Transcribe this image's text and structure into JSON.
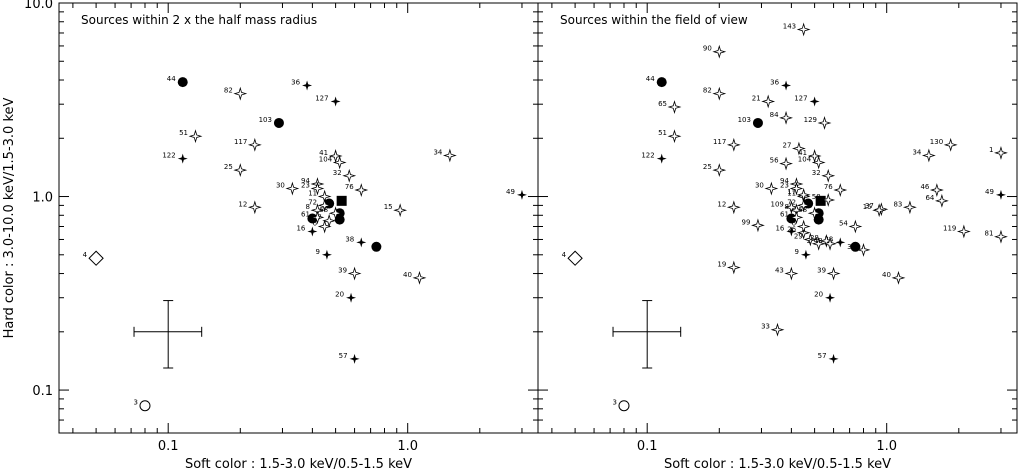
{
  "chart_data": [
    {
      "type": "scatter",
      "title": "Sources within 2 x the half mass radius",
      "xlabel": "Soft color : 1.5-3.0 keV/0.5-1.5 keV",
      "ylabel": "Hard color : 3.0-10.0 keV/1.5-3.0 keV",
      "xscale": "log",
      "yscale": "log",
      "xlim": [
        0.035,
        3.5
      ],
      "ylim": [
        0.06,
        10.0
      ],
      "xticks": [
        "0.1",
        "1.0"
      ],
      "yticks": [
        "0.1",
        "1.0",
        "10.0"
      ],
      "error_bar": {
        "x": 0.1,
        "y": 0.2,
        "x_low": 0.072,
        "x_high": 0.138,
        "y_low": 0.13,
        "y_high": 0.29
      },
      "series": [
        {
          "marker": "filled-circle",
          "points": [
            {
              "id": "44",
              "x": 0.115,
              "y": 3.9
            },
            {
              "id": "103",
              "x": 0.29,
              "y": 2.4
            },
            {
              "id": "",
              "x": 0.4,
              "y": 0.77
            },
            {
              "id": "",
              "x": 0.52,
              "y": 0.76
            },
            {
              "id": "",
              "x": 0.52,
              "y": 0.82
            },
            {
              "id": "",
              "x": 0.47,
              "y": 0.92
            },
            {
              "id": "",
              "x": 0.74,
              "y": 0.55
            }
          ]
        },
        {
          "marker": "filled-square",
          "points": [
            {
              "id": "",
              "x": 0.53,
              "y": 0.95
            }
          ]
        },
        {
          "marker": "filled-star",
          "points": [
            {
              "id": "36",
              "x": 0.38,
              "y": 3.75
            },
            {
              "id": "127",
              "x": 0.5,
              "y": 3.1
            },
            {
              "id": "122",
              "x": 0.115,
              "y": 1.57
            },
            {
              "id": "49",
              "x": 3.0,
              "y": 1.02
            },
            {
              "id": "16",
              "x": 0.4,
              "y": 0.66
            },
            {
              "id": "38",
              "x": 0.64,
              "y": 0.58
            },
            {
              "id": "9",
              "x": 0.46,
              "y": 0.5
            },
            {
              "id": "20",
              "x": 0.58,
              "y": 0.3
            },
            {
              "id": "57",
              "x": 0.6,
              "y": 0.145
            }
          ]
        },
        {
          "marker": "open-star",
          "points": [
            {
              "id": "82",
              "x": 0.2,
              "y": 3.4
            },
            {
              "id": "51",
              "x": 0.13,
              "y": 2.05
            },
            {
              "id": "117",
              "x": 0.23,
              "y": 1.85
            },
            {
              "id": "41",
              "x": 0.5,
              "y": 1.62
            },
            {
              "id": "104",
              "x": 0.52,
              "y": 1.5
            },
            {
              "id": "34",
              "x": 1.5,
              "y": 1.63
            },
            {
              "id": "25",
              "x": 0.2,
              "y": 1.37
            },
            {
              "id": "32",
              "x": 0.57,
              "y": 1.28
            },
            {
              "id": "30",
              "x": 0.33,
              "y": 1.1
            },
            {
              "id": "94",
              "x": 0.42,
              "y": 1.16
            },
            {
              "id": "23",
              "x": 0.42,
              "y": 1.1
            },
            {
              "id": "76",
              "x": 0.64,
              "y": 1.08
            },
            {
              "id": "11",
              "x": 0.45,
              "y": 1.0
            },
            {
              "id": "12",
              "x": 0.23,
              "y": 0.88
            },
            {
              "id": "72",
              "x": 0.45,
              "y": 0.9
            },
            {
              "id": "15",
              "x": 0.93,
              "y": 0.85
            },
            {
              "id": "8",
              "x": 0.42,
              "y": 0.85
            },
            {
              "id": "68",
              "x": 0.5,
              "y": 0.82
            },
            {
              "id": "61",
              "x": 0.42,
              "y": 0.78
            },
            {
              "id": "27",
              "x": 0.47,
              "y": 0.75
            },
            {
              "id": "6",
              "x": 0.45,
              "y": 0.7
            },
            {
              "id": "39",
              "x": 0.6,
              "y": 0.4
            },
            {
              "id": "40",
              "x": 1.12,
              "y": 0.38
            }
          ]
        },
        {
          "marker": "open-diamond",
          "points": [
            {
              "id": "4",
              "x": 0.05,
              "y": 0.48
            }
          ]
        },
        {
          "marker": "open-circle",
          "points": [
            {
              "id": "3",
              "x": 0.08,
              "y": 0.083
            }
          ]
        }
      ]
    },
    {
      "type": "scatter",
      "title": "Sources within the field of view",
      "xlabel": "Soft color : 1.5-3.0 keV/0.5-1.5 keV",
      "ylabel": "",
      "xscale": "log",
      "yscale": "log",
      "xlim": [
        0.035,
        3.5
      ],
      "ylim": [
        0.06,
        10.0
      ],
      "xticks": [
        "0.1",
        "1.0"
      ],
      "yticks": [],
      "error_bar": {
        "x": 0.1,
        "y": 0.2,
        "x_low": 0.072,
        "x_high": 0.138,
        "y_low": 0.13,
        "y_high": 0.29
      },
      "series": [
        {
          "marker": "filled-circle",
          "points": [
            {
              "id": "44",
              "x": 0.115,
              "y": 3.9
            },
            {
              "id": "103",
              "x": 0.29,
              "y": 2.4
            },
            {
              "id": "",
              "x": 0.4,
              "y": 0.77
            },
            {
              "id": "",
              "x": 0.52,
              "y": 0.76
            },
            {
              "id": "",
              "x": 0.52,
              "y": 0.82
            },
            {
              "id": "",
              "x": 0.47,
              "y": 0.92
            },
            {
              "id": "",
              "x": 0.74,
              "y": 0.55
            }
          ]
        },
        {
          "marker": "filled-square",
          "points": [
            {
              "id": "",
              "x": 0.53,
              "y": 0.95
            }
          ]
        },
        {
          "marker": "filled-star",
          "points": [
            {
              "id": "36",
              "x": 0.38,
              "y": 3.75
            },
            {
              "id": "127",
              "x": 0.5,
              "y": 3.1
            },
            {
              "id": "122",
              "x": 0.115,
              "y": 1.57
            },
            {
              "id": "49",
              "x": 3.0,
              "y": 1.02
            },
            {
              "id": "16",
              "x": 0.4,
              "y": 0.66
            },
            {
              "id": "38",
              "x": 0.64,
              "y": 0.58
            },
            {
              "id": "9",
              "x": 0.46,
              "y": 0.5
            },
            {
              "id": "20",
              "x": 0.58,
              "y": 0.3
            },
            {
              "id": "57",
              "x": 0.6,
              "y": 0.145
            }
          ]
        },
        {
          "marker": "open-star",
          "points": [
            {
              "id": "143",
              "x": 0.45,
              "y": 7.3
            },
            {
              "id": "90",
              "x": 0.2,
              "y": 5.6
            },
            {
              "id": "82",
              "x": 0.2,
              "y": 3.4
            },
            {
              "id": "65",
              "x": 0.13,
              "y": 2.9
            },
            {
              "id": "21",
              "x": 0.32,
              "y": 3.1
            },
            {
              "id": "84",
              "x": 0.38,
              "y": 2.55
            },
            {
              "id": "129",
              "x": 0.55,
              "y": 2.4
            },
            {
              "id": "51",
              "x": 0.13,
              "y": 2.05
            },
            {
              "id": "117",
              "x": 0.23,
              "y": 1.85
            },
            {
              "id": "130",
              "x": 1.85,
              "y": 1.85
            },
            {
              "id": "1",
              "x": 3.0,
              "y": 1.68
            },
            {
              "id": "34",
              "x": 1.5,
              "y": 1.63
            },
            {
              "id": "27",
              "x": 0.43,
              "y": 1.77
            },
            {
              "id": "41",
              "x": 0.5,
              "y": 1.62
            },
            {
              "id": "104",
              "x": 0.52,
              "y": 1.5
            },
            {
              "id": "56",
              "x": 0.38,
              "y": 1.48
            },
            {
              "id": "25",
              "x": 0.2,
              "y": 1.37
            },
            {
              "id": "32",
              "x": 0.57,
              "y": 1.28
            },
            {
              "id": "30",
              "x": 0.33,
              "y": 1.1
            },
            {
              "id": "94",
              "x": 0.42,
              "y": 1.16
            },
            {
              "id": "23",
              "x": 0.42,
              "y": 1.1
            },
            {
              "id": "46",
              "x": 1.62,
              "y": 1.08
            },
            {
              "id": "76",
              "x": 0.64,
              "y": 1.08
            },
            {
              "id": "64",
              "x": 1.7,
              "y": 0.95
            },
            {
              "id": "11",
              "x": 0.45,
              "y": 1.0
            },
            {
              "id": "17",
              "x": 0.45,
              "y": 1.02
            },
            {
              "id": "58",
              "x": 0.57,
              "y": 0.96
            },
            {
              "id": "12",
              "x": 0.23,
              "y": 0.88
            },
            {
              "id": "109",
              "x": 0.4,
              "y": 0.88
            },
            {
              "id": "72",
              "x": 0.45,
              "y": 0.9
            },
            {
              "id": "37",
              "x": 0.95,
              "y": 0.86
            },
            {
              "id": "15",
              "x": 0.93,
              "y": 0.85
            },
            {
              "id": "83",
              "x": 1.25,
              "y": 0.88
            },
            {
              "id": "8",
              "x": 0.42,
              "y": 0.85
            },
            {
              "id": "68",
              "x": 0.5,
              "y": 0.82
            },
            {
              "id": "61",
              "x": 0.42,
              "y": 0.78
            },
            {
              "id": "99",
              "x": 0.29,
              "y": 0.71
            },
            {
              "id": "54",
              "x": 0.74,
              "y": 0.7
            },
            {
              "id": "119",
              "x": 2.1,
              "y": 0.66
            },
            {
              "id": "81",
              "x": 3.0,
              "y": 0.62
            },
            {
              "id": "26",
              "x": 0.45,
              "y": 0.65
            },
            {
              "id": "6",
              "x": 0.45,
              "y": 0.7
            },
            {
              "id": "29",
              "x": 0.48,
              "y": 0.6
            },
            {
              "id": "2",
              "x": 0.52,
              "y": 0.57
            },
            {
              "id": "28",
              "x": 0.56,
              "y": 0.59
            },
            {
              "id": "48",
              "x": 0.58,
              "y": 0.57
            },
            {
              "id": "35",
              "x": 0.8,
              "y": 0.53
            },
            {
              "id": "19",
              "x": 0.23,
              "y": 0.43
            },
            {
              "id": "43",
              "x": 0.4,
              "y": 0.4
            },
            {
              "id": "39",
              "x": 0.6,
              "y": 0.4
            },
            {
              "id": "40",
              "x": 1.12,
              "y": 0.38
            },
            {
              "id": "33",
              "x": 0.35,
              "y": 0.205
            }
          ]
        },
        {
          "marker": "open-diamond",
          "points": [
            {
              "id": "4",
              "x": 0.05,
              "y": 0.48
            }
          ]
        },
        {
          "marker": "open-circle",
          "points": [
            {
              "id": "3",
              "x": 0.08,
              "y": 0.083
            }
          ]
        }
      ]
    }
  ]
}
